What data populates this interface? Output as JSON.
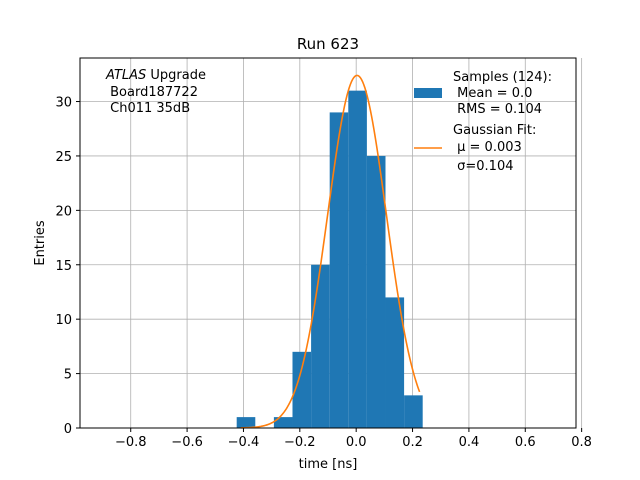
{
  "chart_data": {
    "type": "bar",
    "title": "Run 623",
    "xlabel": "time [ns]",
    "ylabel": "Entries",
    "xlim": [
      -0.98,
      0.78
    ],
    "ylim": [
      0,
      34
    ],
    "grid": true,
    "legend_position": "top-right",
    "xticks": [
      -0.8,
      -0.6,
      -0.4,
      -0.2,
      0.0,
      0.2,
      0.4,
      0.6,
      0.8
    ],
    "xtick_labels": [
      "−0.8",
      "−0.6",
      "−0.4",
      "−0.2",
      "0.0",
      "0.2",
      "0.4",
      "0.6",
      "0.8"
    ],
    "yticks": [
      0,
      5,
      10,
      15,
      20,
      25,
      30
    ],
    "ytick_labels": [
      "0",
      "5",
      "10",
      "15",
      "20",
      "25",
      "30"
    ],
    "bins": {
      "edges": [
        -0.424,
        -0.358,
        -0.292,
        -0.226,
        -0.16,
        -0.094,
        -0.028,
        0.038,
        0.104,
        0.17,
        0.236
      ],
      "counts": [
        1,
        0,
        1,
        7,
        15,
        29,
        31,
        25,
        12,
        3
      ]
    },
    "series": [
      {
        "name": "Samples (124):",
        "kind": "histogram",
        "color": "#1f77b4",
        "stats": [
          " Mean = 0.0",
          " RMS = 0.104"
        ]
      },
      {
        "name": "Gaussian Fit:",
        "kind": "line",
        "color": "#ff7f0e",
        "amplitude": 32.4,
        "mu": 0.003,
        "sigma": 0.104,
        "x_range": [
          -0.41,
          0.225
        ],
        "stats_mu": " μ = 0.003",
        "stats_sigma": " σ=0.104"
      }
    ],
    "annotation": {
      "italic": "ATLAS",
      "rest": " Upgrade",
      "line2": " Board187722",
      "line3": " Ch011 35dB"
    }
  }
}
